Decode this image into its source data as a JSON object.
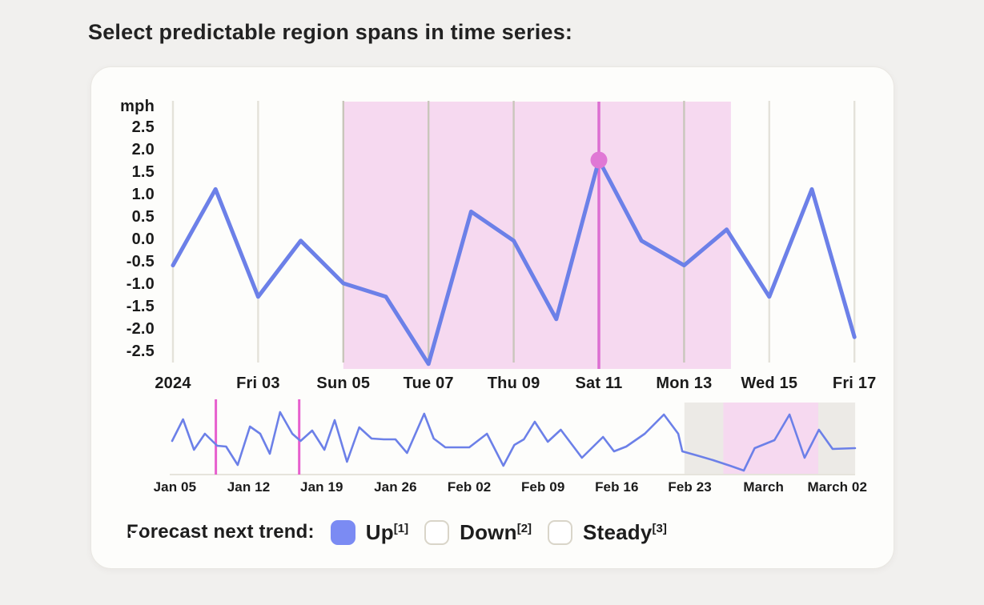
{
  "page": {
    "title": "Select predictable region spans in time series:"
  },
  "colors": {
    "series_line": "#6c80e8",
    "selected_region_fill": "#f6d9f0",
    "selected_day_line": "#dc6fd1",
    "selected_point_fill": "#e078d5",
    "gridline": "#e4e2da",
    "gridline_in_region": "#c9c6bb",
    "overview_muted_region_fill": "#eceae6",
    "overview_highlight_region_fill": "#f6d9f0",
    "overview_marker_line": "#e75fce",
    "overview_baseline": "#e6e4dc",
    "checkbox_checked_fill": "#7b8bf3"
  },
  "chart_data": [
    {
      "id": "main-timeseries",
      "type": "line",
      "title": "",
      "xlabel": "",
      "ylabel": "mph",
      "ylim": [
        -2.9,
        3.1
      ],
      "grid": "vertical-only",
      "legend": "none",
      "y_ticks": [
        2.5,
        2.0,
        1.5,
        1.0,
        0.5,
        0.0,
        -0.5,
        -1.0,
        -1.5,
        -2.0,
        -2.5
      ],
      "x_gridlines": [
        {
          "day": 1,
          "label": "2024"
        },
        {
          "day": 3,
          "label": "Fri 03"
        },
        {
          "day": 5,
          "label": "Sun 05"
        },
        {
          "day": 7,
          "label": "Tue 07"
        },
        {
          "day": 9,
          "label": "Thu 09"
        },
        {
          "day": 11,
          "label": "Sat 11"
        },
        {
          "day": 13,
          "label": "Mon 13"
        },
        {
          "day": 15,
          "label": "Wed 15"
        },
        {
          "day": 17,
          "label": "Fri 17"
        }
      ],
      "days": [
        1,
        2,
        3,
        4,
        5,
        6,
        7,
        8,
        9,
        10,
        11,
        12,
        13,
        14,
        15,
        16,
        17
      ],
      "values": [
        -0.6,
        1.1,
        -1.3,
        -0.05,
        -1.0,
        -1.3,
        -2.8,
        0.6,
        -0.05,
        -1.8,
        1.75,
        -0.05,
        -0.6,
        0.2,
        -1.3,
        1.1,
        -2.2
      ],
      "selected_region": {
        "from_day": 5,
        "to_day": 14.1
      },
      "selected_point": {
        "day": 11,
        "value": 1.75
      }
    },
    {
      "id": "overview-timeline",
      "type": "line",
      "title": "",
      "x_labels": [
        {
          "pos": 0.004,
          "label": "Jan 05"
        },
        {
          "pos": 0.112,
          "label": "Jan 12"
        },
        {
          "pos": 0.219,
          "label": "Jan 19"
        },
        {
          "pos": 0.327,
          "label": "Jan 26"
        },
        {
          "pos": 0.435,
          "label": "Feb 02"
        },
        {
          "pos": 0.543,
          "label": "Feb 09"
        },
        {
          "pos": 0.651,
          "label": "Feb 16"
        },
        {
          "pos": 0.758,
          "label": "Feb 23"
        },
        {
          "pos": 0.866,
          "label": "March"
        },
        {
          "pos": 0.974,
          "label": "March 02"
        }
      ],
      "points_normalized": [
        [
          0.0,
          0.467
        ],
        [
          0.016,
          0.767
        ],
        [
          0.032,
          0.344
        ],
        [
          0.048,
          0.567
        ],
        [
          0.066,
          0.4
        ],
        [
          0.079,
          0.389
        ],
        [
          0.096,
          0.133
        ],
        [
          0.114,
          0.667
        ],
        [
          0.129,
          0.567
        ],
        [
          0.143,
          0.289
        ],
        [
          0.158,
          0.867
        ],
        [
          0.176,
          0.567
        ],
        [
          0.188,
          0.467
        ],
        [
          0.205,
          0.611
        ],
        [
          0.223,
          0.344
        ],
        [
          0.238,
          0.756
        ],
        [
          0.256,
          0.178
        ],
        [
          0.274,
          0.656
        ],
        [
          0.292,
          0.5
        ],
        [
          0.31,
          0.489
        ],
        [
          0.327,
          0.489
        ],
        [
          0.344,
          0.3
        ],
        [
          0.369,
          0.844
        ],
        [
          0.383,
          0.5
        ],
        [
          0.4,
          0.378
        ],
        [
          0.417,
          0.378
        ],
        [
          0.435,
          0.378
        ],
        [
          0.461,
          0.567
        ],
        [
          0.485,
          0.122
        ],
        [
          0.501,
          0.411
        ],
        [
          0.515,
          0.489
        ],
        [
          0.531,
          0.733
        ],
        [
          0.55,
          0.456
        ],
        [
          0.569,
          0.622
        ],
        [
          0.6,
          0.233
        ],
        [
          0.631,
          0.522
        ],
        [
          0.647,
          0.322
        ],
        [
          0.665,
          0.389
        ],
        [
          0.692,
          0.567
        ],
        [
          0.72,
          0.833
        ],
        [
          0.741,
          0.567
        ],
        [
          0.747,
          0.322
        ],
        [
          0.768,
          0.267
        ],
        [
          0.792,
          0.2
        ],
        [
          0.817,
          0.122
        ],
        [
          0.837,
          0.056
        ],
        [
          0.853,
          0.367
        ],
        [
          0.882,
          0.478
        ],
        [
          0.904,
          0.833
        ],
        [
          0.926,
          0.233
        ],
        [
          0.947,
          0.622
        ],
        [
          0.967,
          0.356
        ],
        [
          1.0,
          0.367
        ]
      ],
      "span_markers": [
        0.064,
        0.186
      ],
      "regions": [
        {
          "kind": "muted",
          "from": 0.75,
          "to": 1.0
        },
        {
          "kind": "highlight",
          "from": 0.807,
          "to": 0.946
        }
      ]
    }
  ],
  "forecast": {
    "label": "Forecast next trend:",
    "options": [
      {
        "label": "Up",
        "shortcut": "[1]",
        "checked": true
      },
      {
        "label": "Down",
        "shortcut": "[2]",
        "checked": false
      },
      {
        "label": "Steady",
        "shortcut": "[3]",
        "checked": false
      }
    ]
  }
}
